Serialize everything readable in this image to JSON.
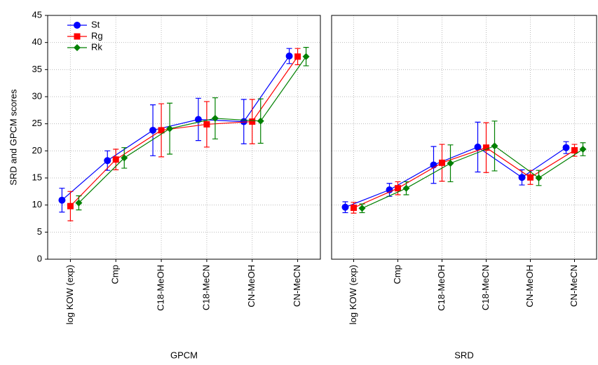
{
  "chart_data": [
    {
      "type": "line",
      "ylabel": "SRD and GPCM scores",
      "xlabel": "GPCM",
      "categories": [
        "log KOW (exp)",
        "Cmp",
        "C18-MeOH",
        "C18-MeCN",
        "CN-MeOH",
        "CN-MeCN"
      ],
      "ylim": [
        0,
        45
      ],
      "yticks": [
        0,
        5,
        10,
        15,
        20,
        25,
        30,
        35,
        40,
        45
      ],
      "grid": true,
      "legend": "upper-left",
      "series": [
        {
          "name": "St",
          "color": "#0000ff",
          "marker": "circle",
          "values": [
            10.9,
            18.2,
            23.8,
            25.8,
            25.4,
            37.5
          ],
          "errors": [
            2.2,
            1.8,
            4.7,
            3.9,
            4.1,
            1.4
          ]
        },
        {
          "name": "Rg",
          "color": "#ff0000",
          "marker": "square",
          "values": [
            9.8,
            18.4,
            23.8,
            24.9,
            25.4,
            37.4
          ],
          "errors": [
            2.7,
            1.9,
            4.9,
            4.2,
            4.1,
            1.5
          ]
        },
        {
          "name": "Rk",
          "color": "#008000",
          "marker": "diamond",
          "values": [
            10.4,
            18.7,
            24.1,
            26.0,
            25.5,
            37.4
          ],
          "errors": [
            1.3,
            1.9,
            4.7,
            3.8,
            4.1,
            1.7
          ]
        }
      ]
    },
    {
      "type": "line",
      "xlabel": "SRD",
      "categories": [
        "log KOW (exp)",
        "Cmp",
        "C18-MeOH",
        "C18-MeCN",
        "CN-MeOH",
        "CN-MeCN"
      ],
      "ylim": [
        0,
        45
      ],
      "yticks": [
        0,
        5,
        10,
        15,
        20,
        25,
        30,
        35,
        40,
        45
      ],
      "grid": true,
      "series": [
        {
          "color": "#0000ff",
          "marker": "circle",
          "values": [
            9.6,
            12.8,
            17.4,
            20.7,
            15.1,
            20.6
          ],
          "errors": [
            1.0,
            1.2,
            3.4,
            4.6,
            1.4,
            1.1
          ]
        },
        {
          "color": "#ff0000",
          "marker": "square",
          "values": [
            9.5,
            13.1,
            17.8,
            20.6,
            15.1,
            20.1
          ],
          "errors": [
            1.0,
            1.2,
            3.4,
            4.6,
            1.3,
            1.1
          ]
        },
        {
          "color": "#008000",
          "marker": "diamond",
          "values": [
            9.4,
            13.1,
            17.7,
            20.9,
            15.0,
            20.3
          ],
          "errors": [
            0.8,
            1.2,
            3.4,
            4.6,
            1.4,
            1.2
          ]
        }
      ]
    }
  ]
}
